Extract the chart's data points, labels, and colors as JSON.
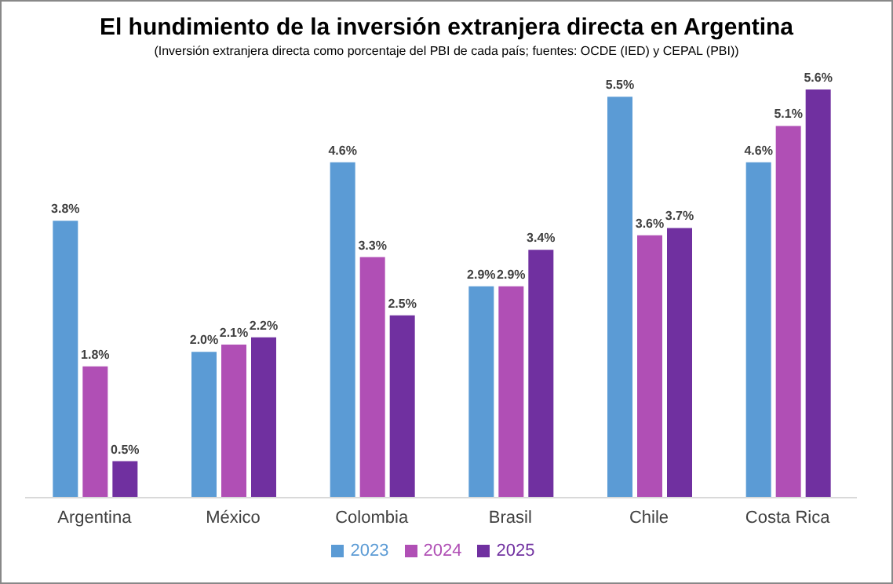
{
  "chart_data": {
    "type": "bar",
    "title": "El hundimiento de la inversión extranjera directa en Argentina",
    "subtitle": "(Inversión extranjera directa como porcentaje del PBI de cada país; fuentes: OCDE (IED) y CEPAL (PBI))",
    "categories": [
      "Argentina",
      "México",
      "Colombia",
      "Brasil",
      "Chile",
      "Costa Rica"
    ],
    "series": [
      {
        "name": "2023",
        "color": "#5b9bd5",
        "values": [
          3.8,
          2.0,
          4.6,
          2.9,
          5.5,
          4.6
        ],
        "value_labels": [
          "3.8%",
          "2.0%",
          "4.6%",
          "2.9%",
          "5.5%",
          "4.6%"
        ]
      },
      {
        "name": "2024",
        "color": "#b04fb5",
        "values": [
          1.8,
          2.1,
          3.3,
          2.9,
          3.6,
          5.1
        ],
        "value_labels": [
          "1.8%",
          "2.1%",
          "3.3%",
          "2.9%",
          "3.6%",
          "5.1%"
        ]
      },
      {
        "name": "2025",
        "color": "#7030a0",
        "values": [
          0.5,
          2.2,
          2.5,
          3.4,
          3.7,
          5.6
        ],
        "value_labels": [
          "0.5%",
          "2.2%",
          "2.5%",
          "3.4%",
          "3.7%",
          "5.6%"
        ]
      }
    ],
    "legend": "bottom",
    "grid": false
  }
}
